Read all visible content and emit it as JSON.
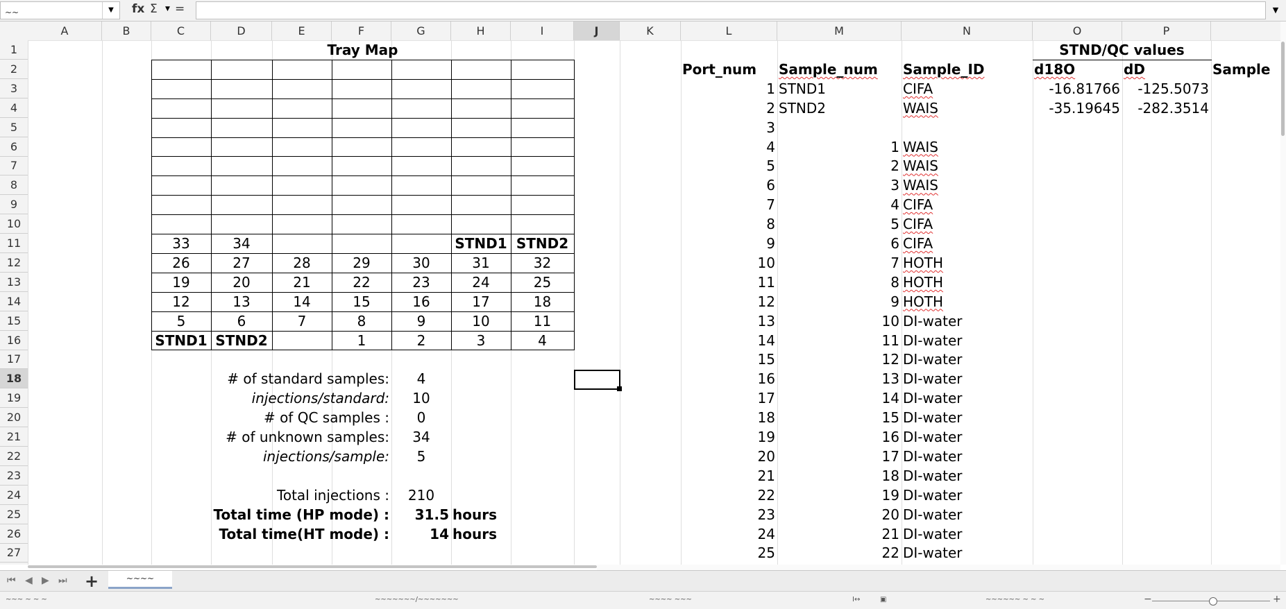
{
  "namebox": {
    "value": "~~"
  },
  "formula_bar": {
    "fx": "fx",
    "sigma": "Σ",
    "equals": "=",
    "value": ""
  },
  "columns": [
    "A",
    "B",
    "C",
    "D",
    "E",
    "F",
    "G",
    "H",
    "I",
    "J",
    "K",
    "L",
    "M",
    "N",
    "O",
    "P"
  ],
  "selected_column": "J",
  "selected_row": "18",
  "rows": [
    "1",
    "2",
    "3",
    "4",
    "5",
    "6",
    "7",
    "8",
    "9",
    "10",
    "11",
    "12",
    "13",
    "14",
    "15",
    "16",
    "17",
    "18",
    "19",
    "20",
    "21",
    "22",
    "23",
    "24",
    "25",
    "26",
    "27"
  ],
  "tray_map": {
    "title": "Tray Map",
    "row11": [
      "33",
      "34",
      "",
      "",
      "",
      "STND1",
      "STND2"
    ],
    "row12": [
      "26",
      "27",
      "28",
      "29",
      "30",
      "31",
      "32"
    ],
    "row13": [
      "19",
      "20",
      "21",
      "22",
      "23",
      "24",
      "25"
    ],
    "row14": [
      "12",
      "13",
      "14",
      "15",
      "16",
      "17",
      "18"
    ],
    "row15": [
      "5",
      "6",
      "7",
      "8",
      "9",
      "10",
      "11"
    ],
    "row16": [
      "STND1",
      "STND2",
      "",
      "1",
      "2",
      "3",
      "4"
    ]
  },
  "summary": {
    "std_label": "# of standard samples:",
    "std_value": "4",
    "inj_std_label": "injections/standard:",
    "inj_std_value": "10",
    "qc_label": "# of QC samples :",
    "qc_value": "0",
    "unk_label": "# of unknown samples:",
    "unk_value": "34",
    "inj_sample_label": "injections/sample:",
    "inj_sample_value": "5",
    "total_inj_label": "Total injections :",
    "total_inj_value": "210",
    "hp_label": "Total time (HP mode) :",
    "hp_value": "31.5",
    "hp_unit": "hours",
    "ht_label": "Total time(HT mode) :",
    "ht_value": "14",
    "ht_unit": "hours"
  },
  "sample_table": {
    "stnd_qc_title": "STND/QC values",
    "headers": {
      "port": "Port_num",
      "sample_num": "Sample_num",
      "sample_id": "Sample_ID",
      "d18o": "d18O",
      "dd": "dD",
      "sample": "Sample"
    },
    "rows": [
      {
        "port": "1",
        "num": "STND1",
        "id": "CIFA",
        "d18o": "-16.81766",
        "dd": "-125.5073"
      },
      {
        "port": "2",
        "num": "STND2",
        "id": "WAIS",
        "d18o": "-35.19645",
        "dd": "-282.3514"
      },
      {
        "port": "3",
        "num": "",
        "id": "",
        "d18o": "",
        "dd": ""
      },
      {
        "port": "4",
        "num": "1",
        "id": "WAIS",
        "d18o": "",
        "dd": ""
      },
      {
        "port": "5",
        "num": "2",
        "id": "WAIS",
        "d18o": "",
        "dd": ""
      },
      {
        "port": "6",
        "num": "3",
        "id": "WAIS",
        "d18o": "",
        "dd": ""
      },
      {
        "port": "7",
        "num": "4",
        "id": "CIFA",
        "d18o": "",
        "dd": ""
      },
      {
        "port": "8",
        "num": "5",
        "id": "CIFA",
        "d18o": "",
        "dd": ""
      },
      {
        "port": "9",
        "num": "6",
        "id": "CIFA",
        "d18o": "",
        "dd": ""
      },
      {
        "port": "10",
        "num": "7",
        "id": "HOTH",
        "d18o": "",
        "dd": ""
      },
      {
        "port": "11",
        "num": "8",
        "id": "HOTH",
        "d18o": "",
        "dd": ""
      },
      {
        "port": "12",
        "num": "9",
        "id": "HOTH",
        "d18o": "",
        "dd": ""
      },
      {
        "port": "13",
        "num": "10",
        "id": "DI-water",
        "d18o": "",
        "dd": ""
      },
      {
        "port": "14",
        "num": "11",
        "id": "DI-water",
        "d18o": "",
        "dd": ""
      },
      {
        "port": "15",
        "num": "12",
        "id": "DI-water",
        "d18o": "",
        "dd": ""
      },
      {
        "port": "16",
        "num": "13",
        "id": "DI-water",
        "d18o": "",
        "dd": ""
      },
      {
        "port": "17",
        "num": "14",
        "id": "DI-water",
        "d18o": "",
        "dd": ""
      },
      {
        "port": "18",
        "num": "15",
        "id": "DI-water",
        "d18o": "",
        "dd": ""
      },
      {
        "port": "19",
        "num": "16",
        "id": "DI-water",
        "d18o": "",
        "dd": ""
      },
      {
        "port": "20",
        "num": "17",
        "id": "DI-water",
        "d18o": "",
        "dd": ""
      },
      {
        "port": "21",
        "num": "18",
        "id": "DI-water",
        "d18o": "",
        "dd": ""
      },
      {
        "port": "22",
        "num": "19",
        "id": "DI-water",
        "d18o": "",
        "dd": ""
      },
      {
        "port": "23",
        "num": "20",
        "id": "DI-water",
        "d18o": "",
        "dd": ""
      },
      {
        "port": "24",
        "num": "21",
        "id": "DI-water",
        "d18o": "",
        "dd": ""
      },
      {
        "port": "25",
        "num": "22",
        "id": "DI-water",
        "d18o": "",
        "dd": ""
      }
    ]
  },
  "sheet_tabs": [
    {
      "label": "~~~~"
    }
  ],
  "nav_icons": [
    "first-sheet-icon",
    "prev-sheet-icon",
    "next-sheet-icon",
    "last-sheet-icon",
    "add-sheet-icon"
  ],
  "status": {
    "s1": "~~~ ~ ~ ~",
    "s2": "~~~~~~~/~~~~~~~",
    "s3": "~~~~ ~~~",
    "s4": "~~~~~~ ~ ~ ~"
  }
}
